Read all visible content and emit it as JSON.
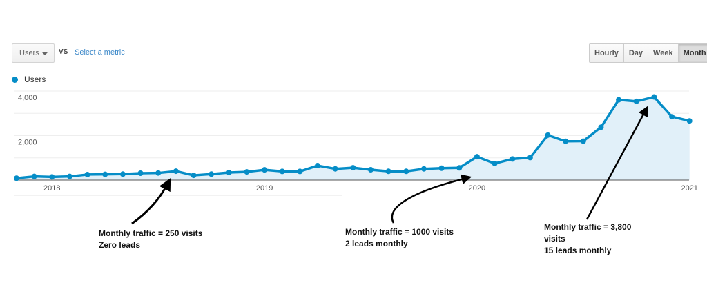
{
  "controls": {
    "metric_dropdown": "Users",
    "vs_label": "VS",
    "select_metric_link": "Select a metric",
    "granularity_buttons": [
      "Hourly",
      "Day",
      "Week",
      "Month"
    ],
    "selected_granularity": "Month"
  },
  "chart_data": {
    "type": "area",
    "legend": [
      {
        "name": "Users",
        "color": "#058dc7"
      }
    ],
    "legend_placement": "top-left",
    "series_color": "#058dc7",
    "fill_color": "#e1f0f9",
    "x_tick_labels": [
      "2018",
      "2019",
      "2020",
      "2021"
    ],
    "x_start": "2017-11",
    "x_end": "2021-01",
    "x_interval": "month",
    "y_tick_labels": [
      "4,000",
      "2,000"
    ],
    "ylim": [
      0,
      4000
    ],
    "grid": true,
    "series": [
      {
        "name": "Users",
        "values": [
          85,
          165,
          145,
          165,
          250,
          260,
          270,
          310,
          320,
          400,
          215,
          270,
          340,
          370,
          460,
          390,
          390,
          650,
          505,
          555,
          465,
          395,
          395,
          505,
          535,
          550,
          1050,
          745,
          950,
          1010,
          2020,
          1745,
          1750,
          2375,
          3610,
          3540,
          3735,
          2850,
          2660
        ]
      }
    ]
  },
  "annotations": [
    {
      "lines": [
        "Monthly traffic = 250 visits",
        "Zero leads"
      ]
    },
    {
      "lines": [
        "Monthly traffic = 1000 visits",
        "2 leads monthly"
      ]
    },
    {
      "lines": [
        "Monthly traffic = 3,800",
        "visits",
        "15 leads monthly"
      ]
    }
  ]
}
